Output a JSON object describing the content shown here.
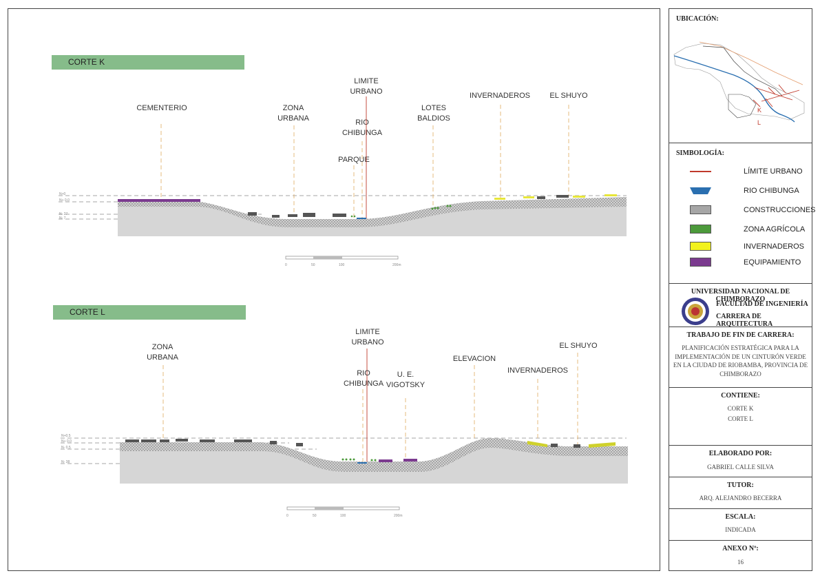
{
  "sections": [
    {
      "title": "CORTE K",
      "labels": {
        "cementerio": "CEMENTERIO",
        "zona_urbana": [
          "ZONA",
          "URBANA"
        ],
        "limite_urbano": [
          "LIMITE",
          "URBANO"
        ],
        "rio_chibunga": [
          "RIO",
          "CHIBUNGA"
        ],
        "parque": "PARQUE",
        "lotes_baldios": [
          "LOTES",
          "BALDIOS"
        ],
        "invernaderos": "INVERNADEROS",
        "el_shuyo": "EL SHUYO"
      },
      "levels": [
        "N+0",
        "N+ 0.0",
        "N- 27",
        "N- 7"
      ],
      "scale_ticks": [
        "0",
        "50",
        "100",
        "200m"
      ]
    },
    {
      "title": "CORTE L",
      "labels": {
        "zona_urbana": [
          "ZONA",
          "URBANA"
        ],
        "limite_urbano": [
          "LIMITE",
          "URBANO"
        ],
        "rio_chibunga": [
          "RIO",
          "CHIBUNGA"
        ],
        "ue_vigotsky": [
          "U. E.",
          "VIGOTSKY"
        ],
        "elevacion": "ELEVACION",
        "invernaderos": "INVERNADEROS",
        "el_shuyo": "EL SHUYO"
      },
      "levels": [
        "N+0.5",
        "N+ 0.0",
        "N- 0.5",
        "N- 38"
      ],
      "scale_ticks": [
        "0",
        "50",
        "100",
        "200m"
      ]
    }
  ],
  "panel": {
    "ubicacion_title": "UBICACIÓN:",
    "map_labels": {
      "k": "K",
      "l": "L"
    },
    "simbologia_title": "SIMBOLOGÍA:",
    "legend": [
      {
        "label": "LÍMITE URBANO",
        "color": "#c0392b",
        "kind": "line"
      },
      {
        "label": "RIO CHIBUNGA",
        "color": "#2a6fb0",
        "kind": "river"
      },
      {
        "label": "CONSTRUCCIONES",
        "color": "#a6a6a6",
        "kind": "box"
      },
      {
        "label": "ZONA AGRÍCOLA",
        "color": "#4c9a3b",
        "kind": "box"
      },
      {
        "label": "INVERNADEROS",
        "color": "#f2f21e",
        "kind": "box"
      },
      {
        "label": "EQUIPAMIENTO",
        "color": "#7b3a8f",
        "kind": "box"
      }
    ],
    "university": "UNIVERSIDAD NACIONAL DE CHIMBORAZO",
    "faculty": "FACULTAD DE INGENIERÍA",
    "career": "CARRERA DE ARQUITECTURA",
    "thesis_title": "TRABAJO DE FIN DE CARRERA:",
    "thesis_lines": [
      "PLANIFICACIÓN ESTRATÉGICA PARA LA",
      "IMPLEMENTACIÓN DE UN CINTURÓN VERDE",
      "EN LA CIUDAD DE RIOBAMBA, PROVINCIA DE",
      "CHIMBORAZO"
    ],
    "contiene_title": "CONTIENE:",
    "contiene_items": [
      "CORTE K",
      "CORTE L"
    ],
    "elaborado_title": "ELABORADO POR:",
    "elaborado": "GABRIEL CALLE SILVA",
    "tutor_title": "TUTOR:",
    "tutor": "ARQ. ALEJANDRO BECERRA",
    "escala_title": "ESCALA:",
    "escala": "INDICADA",
    "anexo_title": "ANEXO Nº:",
    "anexo": "16"
  }
}
